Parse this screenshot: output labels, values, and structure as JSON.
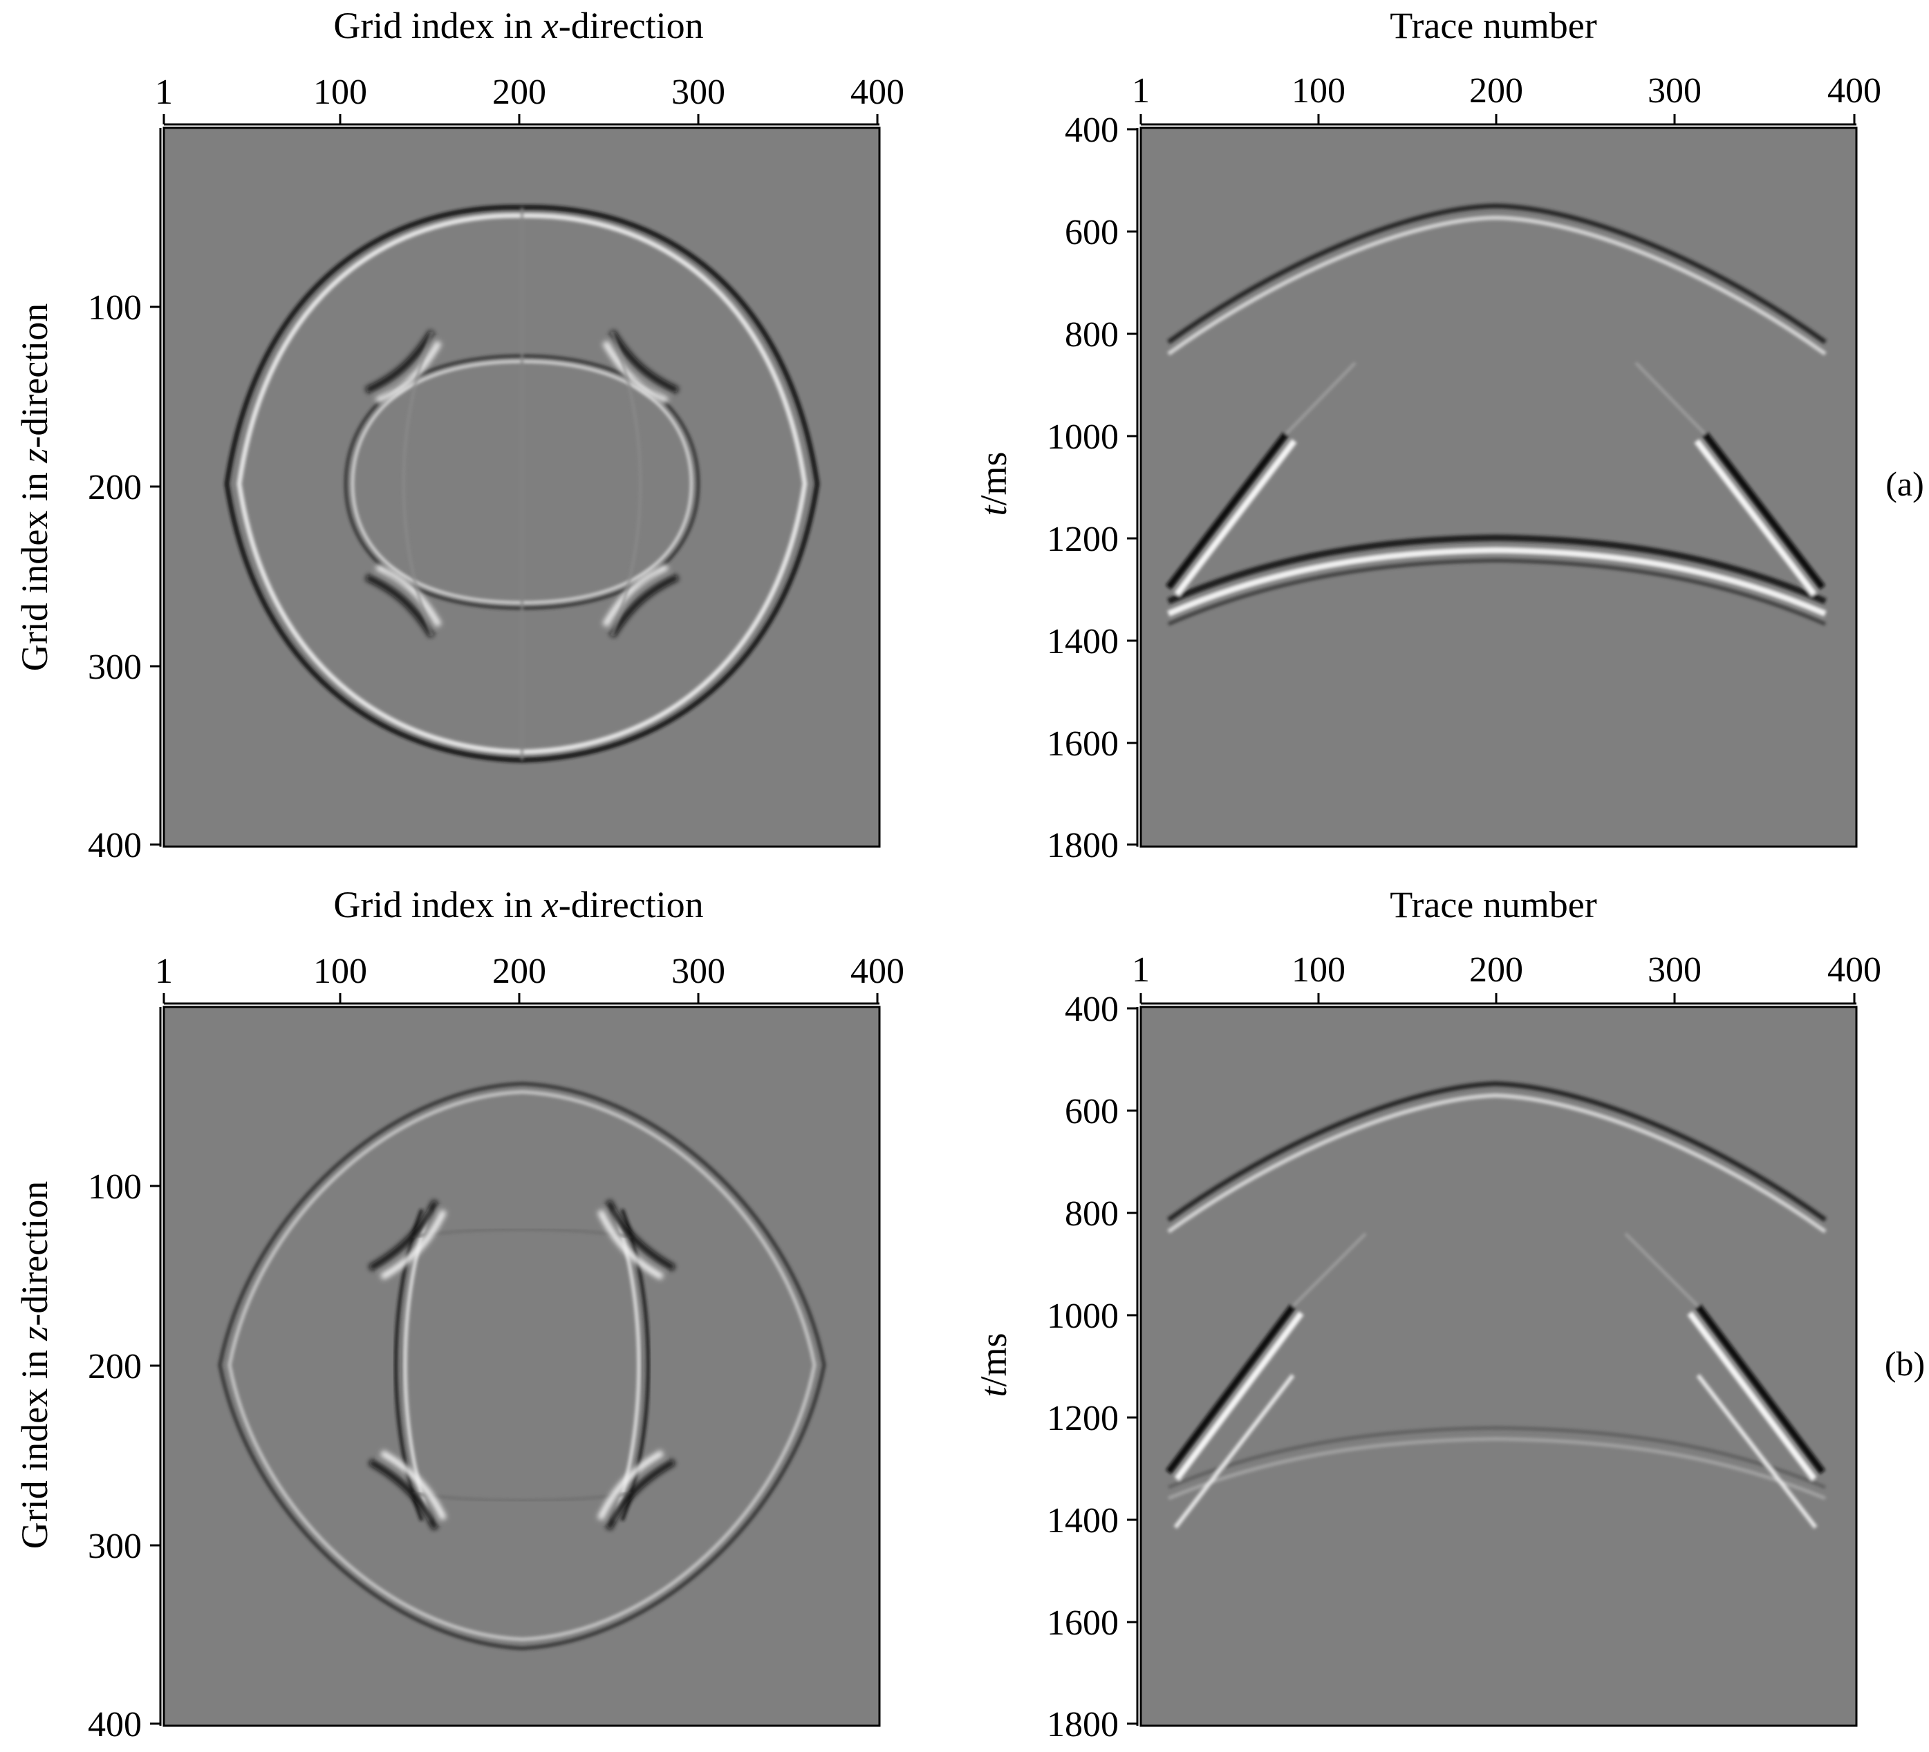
{
  "figure": {
    "panels": [
      {
        "id": "a",
        "label": "(a)",
        "snapshot": {
          "x_title": {
            "pre": "Grid index in ",
            "var": "x",
            "post": "-direction"
          },
          "y_title": {
            "pre": "Grid index in ",
            "var": "z",
            "post": "-direction"
          },
          "x_ticks": [
            "1",
            "100",
            "200",
            "300",
            "400"
          ],
          "y_ticks": [
            "100",
            "200",
            "300",
            "400"
          ]
        },
        "record": {
          "x_title": "Trace number",
          "y_title": {
            "var": "t",
            "post": "/ms"
          },
          "x_ticks": [
            "1",
            "100",
            "200",
            "300",
            "400"
          ],
          "y_ticks": [
            "400",
            "600",
            "800",
            "1000",
            "1200",
            "1400",
            "1600",
            "1800"
          ]
        }
      },
      {
        "id": "b",
        "label": "(b)",
        "snapshot": {
          "x_title": {
            "pre": "Grid index in ",
            "var": "x",
            "post": "-direction"
          },
          "y_title": {
            "pre": "Grid index in ",
            "var": "z",
            "post": "-direction"
          },
          "x_ticks": [
            "1",
            "100",
            "200",
            "300",
            "400"
          ],
          "y_ticks": [
            "100",
            "200",
            "300",
            "400"
          ]
        },
        "record": {
          "x_title": "Trace number",
          "y_title": {
            "var": "t",
            "post": "/ms"
          },
          "x_ticks": [
            "1",
            "100",
            "200",
            "300",
            "400"
          ],
          "y_ticks": [
            "400",
            "600",
            "800",
            "1000",
            "1200",
            "1400",
            "1600",
            "1800"
          ]
        }
      }
    ],
    "colors": {
      "background": "#7f7f7f",
      "axis": "#000000",
      "wave_dark": "#101010",
      "wave_light": "#f2f2f2"
    }
  }
}
